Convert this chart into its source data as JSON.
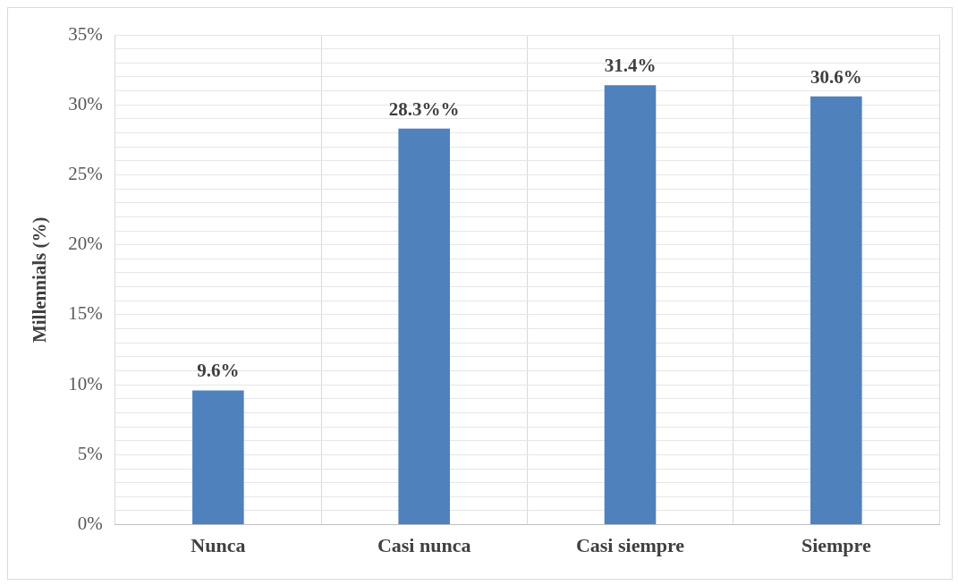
{
  "chart_data": {
    "type": "bar",
    "ylabel": "Millennials (%)",
    "categories": [
      "Nunca",
      "Casi nunca",
      "Casi siempre",
      "Siempre"
    ],
    "values": [
      9.6,
      28.3,
      31.4,
      30.6
    ],
    "value_labels": [
      "9.6%",
      "28.3%%",
      "31.4%",
      "30.6%"
    ],
    "color": "#4f81bd",
    "ylim": [
      0,
      35
    ],
    "yticks": [
      {
        "value": 0,
        "label": "0%"
      },
      {
        "value": 1,
        "label": null
      },
      {
        "value": 2,
        "label": null
      },
      {
        "value": 3,
        "label": null
      },
      {
        "value": 4,
        "label": null
      },
      {
        "value": 5,
        "label": "5%"
      },
      {
        "value": 6,
        "label": null
      },
      {
        "value": 7,
        "label": null
      },
      {
        "value": 8,
        "label": null
      },
      {
        "value": 9,
        "label": null
      },
      {
        "value": 10,
        "label": "10%"
      },
      {
        "value": 11,
        "label": null
      },
      {
        "value": 12,
        "label": null
      },
      {
        "value": 13,
        "label": null
      },
      {
        "value": 14,
        "label": null
      },
      {
        "value": 15,
        "label": "15%"
      },
      {
        "value": 16,
        "label": null
      },
      {
        "value": 17,
        "label": null
      },
      {
        "value": 18,
        "label": null
      },
      {
        "value": 19,
        "label": null
      },
      {
        "value": 20,
        "label": "20%"
      },
      {
        "value": 21,
        "label": null
      },
      {
        "value": 22,
        "label": null
      },
      {
        "value": 23,
        "label": null
      },
      {
        "value": 24,
        "label": null
      },
      {
        "value": 25,
        "label": "25%"
      },
      {
        "value": 26,
        "label": null
      },
      {
        "value": 27,
        "label": null
      },
      {
        "value": 28,
        "label": null
      },
      {
        "value": 29,
        "label": null
      },
      {
        "value": 30,
        "label": "30%"
      },
      {
        "value": 31,
        "label": null
      },
      {
        "value": 32,
        "label": null
      },
      {
        "value": 33,
        "label": null
      },
      {
        "value": 34,
        "label": null
      },
      {
        "value": 35,
        "label": "35%"
      }
    ],
    "grid": true,
    "legend": false
  }
}
